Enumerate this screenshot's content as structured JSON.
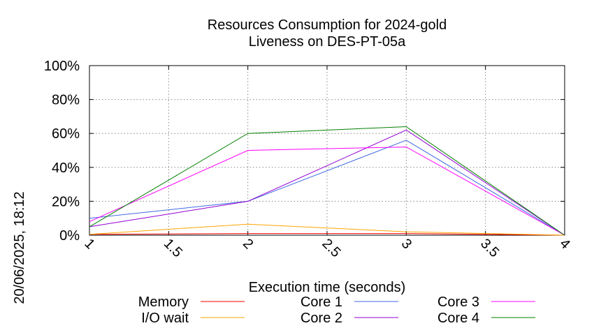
{
  "chart_data": {
    "type": "line",
    "title": [
      "Resources Consumption for 2024-gold",
      "Liveness on DES-PT-05a"
    ],
    "xlabel": "Execution time (seconds)",
    "ylabel": "",
    "side_label": "20/06/2025, 18:12",
    "xlim": [
      1,
      4
    ],
    "ylim": [
      0,
      100
    ],
    "x_ticks": [
      1,
      1.5,
      2,
      2.5,
      3,
      3.5,
      4
    ],
    "x_tick_labels": [
      "1",
      "1.5",
      "2",
      "2.5",
      "3",
      "3.5",
      "4"
    ],
    "y_ticks": [
      0,
      20,
      40,
      60,
      80,
      100
    ],
    "y_tick_labels": [
      "0%",
      "20%",
      "40%",
      "60%",
      "80%",
      "100%"
    ],
    "grid": true,
    "legend_position": "bottom",
    "x": [
      1,
      2,
      3,
      4
    ],
    "series": [
      {
        "name": "Memory",
        "color": "#ff0000",
        "values": [
          0.5,
          1,
          1,
          0
        ]
      },
      {
        "name": "I/O wait",
        "color": "#ffa500",
        "values": [
          0.5,
          6.5,
          2,
          0
        ]
      },
      {
        "name": "Core 1",
        "color": "#4169e1",
        "values": [
          10,
          20,
          56,
          0
        ]
      },
      {
        "name": "Core 2",
        "color": "#9400d3",
        "values": [
          5,
          20,
          62,
          0
        ]
      },
      {
        "name": "Core 3",
        "color": "#ff00ff",
        "values": [
          8,
          50,
          52,
          0
        ]
      },
      {
        "name": "Core 4",
        "color": "#008000",
        "values": [
          5,
          60,
          64,
          0
        ]
      }
    ]
  }
}
